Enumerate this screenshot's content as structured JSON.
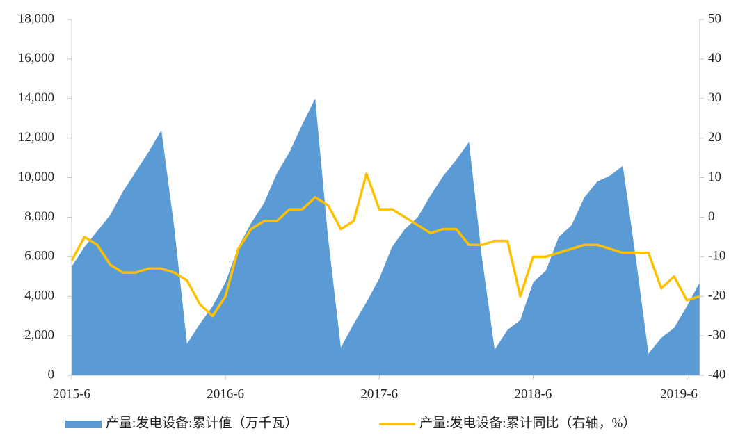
{
  "chart_data": {
    "type": "area_line",
    "categories": [
      "2015-6",
      null,
      null,
      null,
      null,
      null,
      null,
      null,
      null,
      null,
      null,
      null,
      "2016-6",
      null,
      null,
      null,
      null,
      null,
      null,
      null,
      null,
      null,
      null,
      null,
      "2017-6",
      null,
      null,
      null,
      null,
      null,
      null,
      null,
      null,
      null,
      null,
      null,
      "2018-6",
      null,
      null,
      null,
      null,
      null,
      null,
      null,
      null,
      null,
      null,
      null,
      "2019-6",
      null
    ],
    "series": [
      {
        "name": "产量:发电设备:累计值（万千瓦）",
        "type": "area",
        "color": "#5b9bd5",
        "values": [
          5500,
          6500,
          7300,
          8100,
          9300,
          10300,
          11300,
          12400,
          7500,
          1600,
          2600,
          3500,
          4700,
          6500,
          7700,
          8700,
          10200,
          11300,
          12700,
          14000,
          7000,
          1400,
          2600,
          3700,
          4900,
          6500,
          7400,
          8000,
          9100,
          10100,
          10900,
          11800,
          6000,
          1300,
          2300,
          2800,
          4700,
          5300,
          7000,
          7600,
          9000,
          9800,
          10100,
          10600,
          6000,
          1100,
          1900,
          2400,
          3500,
          4700
        ]
      },
      {
        "name": "产量:发电设备:累计同比（右轴，%）",
        "type": "line",
        "axis": "y2",
        "color": "#ffc000",
        "values": [
          -11,
          -5,
          -7,
          -12,
          -14,
          -14,
          -13,
          -13,
          -14,
          -16,
          -22,
          -25,
          -20,
          -8,
          -3,
          -1,
          -1,
          2,
          2,
          5,
          3,
          -3,
          -1,
          11,
          2,
          2,
          0,
          -2,
          -4,
          -3,
          -3,
          -7,
          -7,
          -6,
          -6,
          -20,
          -10,
          -10,
          -9,
          -8,
          -7,
          -7,
          -8,
          -9,
          -9,
          -9,
          -18,
          -15,
          -21,
          -20
        ]
      }
    ],
    "ylim": [
      0,
      18000
    ],
    "yticks": [
      0,
      {
        "value": 2000,
        "label": "2,000"
      },
      {
        "value": 4000,
        "label": "4,000"
      },
      {
        "value": 6000,
        "label": "6,000"
      },
      {
        "value": 8000,
        "label": "8,000"
      },
      {
        "value": 10000,
        "label": "10,000"
      },
      {
        "value": 12000,
        "label": "12,000"
      },
      {
        "value": 14000,
        "label": "14,000"
      },
      {
        "value": 16000,
        "label": "16,000"
      },
      {
        "value": 18000,
        "label": "18,000"
      }
    ],
    "y2lim": [
      -40,
      50
    ],
    "y2ticks": [
      -40,
      -30,
      -20,
      -10,
      0,
      10,
      20,
      30,
      40,
      50
    ],
    "grid": false,
    "legend": "bottom"
  }
}
